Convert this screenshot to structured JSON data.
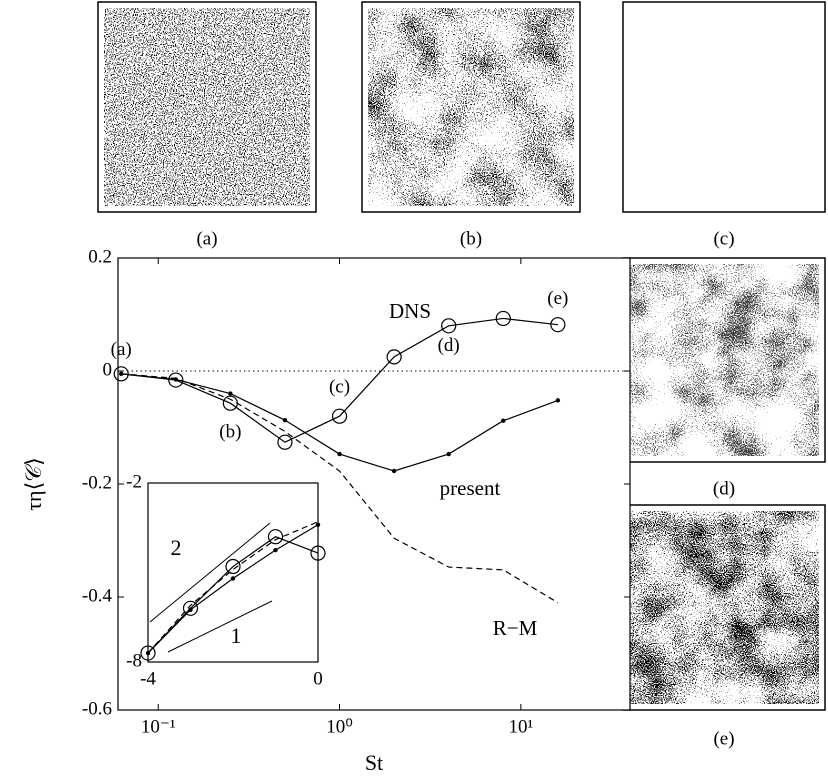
{
  "chart_data": [
    {
      "type": "line",
      "xlabel": "St",
      "ylabel": "τη⟨𝒞⟩",
      "xscale": "log",
      "x": [
        0.0625,
        0.125,
        0.25,
        0.5,
        1,
        2,
        4,
        8,
        16
      ],
      "xlim": [
        0.06,
        40
      ],
      "xticks": [
        {
          "value": 0.1,
          "label": "10⁻¹"
        },
        {
          "value": 1,
          "label": "10⁰"
        },
        {
          "value": 10,
          "label": "10¹"
        }
      ],
      "ylim": [
        -0.6,
        0.2
      ],
      "yticks": [
        0.2,
        0,
        -0.2,
        -0.4,
        -0.6
      ],
      "zero_line": true,
      "series": [
        {
          "name": "DNS",
          "color": "#000000",
          "marker": "circle",
          "dash": "solid",
          "values": [
            -0.005,
            -0.016,
            -0.057,
            -0.126,
            -0.08,
            0.025,
            0.08,
            0.093,
            0.082
          ]
        },
        {
          "name": "present",
          "color": "#000000",
          "marker": "dot",
          "dash": "solid",
          "values": [
            -0.005,
            -0.015,
            -0.04,
            -0.087,
            -0.147,
            -0.177,
            -0.147,
            -0.088,
            -0.052
          ]
        },
        {
          "name": "R−M",
          "color": "#000000",
          "marker": "none",
          "dash": "dashed",
          "values": [
            -0.005,
            -0.013,
            -0.05,
            -0.107,
            -0.177,
            -0.296,
            -0.347,
            -0.352,
            -0.41
          ]
        }
      ],
      "point_labels": [
        "(a)",
        "(b)",
        "(c)",
        "(d)",
        "(e)"
      ]
    },
    {
      "type": "line",
      "x": [
        -4,
        -3,
        -2,
        -1,
        0
      ],
      "xlim": [
        -4,
        0
      ],
      "xticks": [
        -4,
        0
      ],
      "ylim": [
        -8,
        -2
      ],
      "yticks": [
        -2,
        -8
      ],
      "series": [
        {
          "color": "#000000",
          "marker": "circle",
          "dash": "solid",
          "values": [
            -7.7,
            -6.2,
            -4.8,
            -3.8,
            -4.35
          ]
        },
        {
          "color": "#000000",
          "marker": "dot",
          "dash": "solid",
          "values": [
            -7.7,
            -6.25,
            -5.2,
            -4.25,
            -3.4
          ]
        },
        {
          "color": "#000000",
          "marker": "none",
          "dash": "dashed",
          "values": [
            -7.7,
            -6.1,
            -4.9,
            -3.9,
            -3.3
          ]
        }
      ],
      "slope_labels": [
        "2",
        "1"
      ]
    }
  ],
  "panels": [
    {
      "label": "(a)"
    },
    {
      "label": "(b)"
    },
    {
      "label": "(c)"
    },
    {
      "label": "(d)"
    },
    {
      "label": "(e)"
    }
  ]
}
